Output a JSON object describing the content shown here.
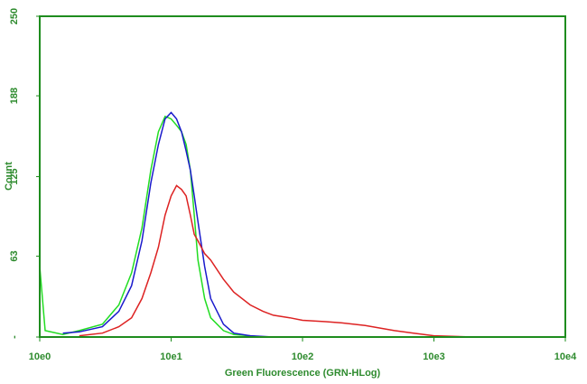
{
  "chart_data": {
    "type": "line",
    "x_label": "Green Fluorescence (GRN-HLog)",
    "y_label": "Count",
    "xlog": true,
    "xlim": [
      1,
      10000
    ],
    "xticks": [
      {
        "value": 1,
        "label": "10e0"
      },
      {
        "value": 10,
        "label": "10e1"
      },
      {
        "value": 100,
        "label": "10e2"
      },
      {
        "value": 1000,
        "label": "10e3"
      },
      {
        "value": 10000,
        "label": "10e4"
      }
    ],
    "ylim": [
      0,
      250
    ],
    "yticks": [
      {
        "value": 0,
        "label": "-"
      },
      63,
      125,
      188,
      250
    ],
    "axis_color": "#1e8c1e",
    "series": [
      {
        "color": "#22dd22",
        "x": [
          1,
          1.1,
          1.5,
          2,
          3,
          4,
          5,
          6,
          7,
          8,
          9,
          10,
          11,
          12,
          13,
          14,
          15,
          16,
          18,
          20,
          25,
          30,
          40,
          50
        ],
        "values": [
          55,
          5,
          2,
          5,
          10,
          25,
          50,
          85,
          130,
          160,
          172,
          170,
          165,
          160,
          150,
          130,
          95,
          60,
          30,
          15,
          5,
          2,
          1,
          0
        ]
      },
      {
        "color": "#1a1acc",
        "x": [
          1.5,
          2,
          3,
          4,
          5,
          6,
          7,
          8,
          9,
          10,
          11,
          12,
          13,
          14,
          15,
          16,
          18,
          20,
          25,
          30,
          40,
          60
        ],
        "values": [
          3,
          4,
          8,
          20,
          40,
          75,
          120,
          150,
          170,
          175,
          170,
          160,
          145,
          130,
          110,
          90,
          55,
          30,
          10,
          3,
          1,
          0
        ]
      },
      {
        "color": "#dd2222",
        "x": [
          2,
          3,
          4,
          5,
          6,
          7,
          8,
          9,
          10,
          11,
          12,
          13,
          14,
          15,
          16,
          18,
          20,
          25,
          30,
          40,
          50,
          60,
          80,
          100,
          150,
          200,
          300,
          500,
          700,
          1000,
          2000
        ],
        "values": [
          1,
          3,
          8,
          15,
          30,
          50,
          70,
          95,
          110,
          118,
          115,
          110,
          95,
          80,
          75,
          65,
          60,
          45,
          35,
          25,
          20,
          17,
          15,
          13,
          12,
          11,
          9,
          5,
          3,
          1,
          0
        ]
      }
    ]
  }
}
